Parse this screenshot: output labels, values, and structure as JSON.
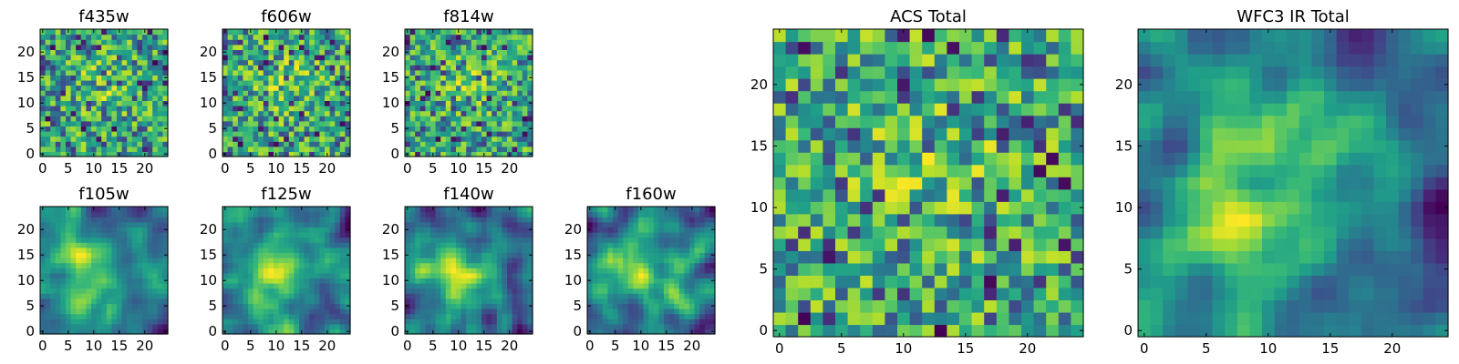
{
  "figure": {
    "background": "#ffffff"
  },
  "chart_data": [
    {
      "type": "heatmap",
      "title": "f435w",
      "rows": 25,
      "cols": 25,
      "xticks": [
        0,
        5,
        10,
        15,
        20
      ],
      "yticks": [
        0,
        5,
        10,
        15,
        20
      ],
      "xlim": [
        -0.5,
        24.5
      ],
      "ylim": [
        -0.5,
        24.5
      ],
      "colormap": "viridis",
      "pattern": "noise",
      "seed": 11
    },
    {
      "type": "heatmap",
      "title": "f606w",
      "rows": 25,
      "cols": 25,
      "xticks": [
        0,
        5,
        10,
        15,
        20
      ],
      "yticks": [
        0,
        5,
        10,
        15,
        20
      ],
      "xlim": [
        -0.5,
        24.5
      ],
      "ylim": [
        -0.5,
        24.5
      ],
      "colormap": "viridis",
      "pattern": "noise",
      "seed": 23
    },
    {
      "type": "heatmap",
      "title": "f814w",
      "rows": 25,
      "cols": 25,
      "xticks": [
        0,
        5,
        10,
        15,
        20
      ],
      "yticks": [
        0,
        5,
        10,
        15,
        20
      ],
      "xlim": [
        -0.5,
        24.5
      ],
      "ylim": [
        -0.5,
        24.5
      ],
      "colormap": "viridis",
      "pattern": "noise",
      "seed": 37
    },
    {
      "type": "heatmap",
      "title": "f105w",
      "rows": 25,
      "cols": 25,
      "xticks": [
        0,
        5,
        10,
        15,
        20
      ],
      "yticks": [
        0,
        5,
        10,
        15,
        20
      ],
      "xlim": [
        -0.5,
        24.5
      ],
      "ylim": [
        -0.5,
        24.5
      ],
      "colormap": "viridis",
      "pattern": "smooth",
      "seed": 41
    },
    {
      "type": "heatmap",
      "title": "f125w",
      "rows": 25,
      "cols": 25,
      "xticks": [
        0,
        5,
        10,
        15,
        20
      ],
      "yticks": [
        0,
        5,
        10,
        15,
        20
      ],
      "xlim": [
        -0.5,
        24.5
      ],
      "ylim": [
        -0.5,
        24.5
      ],
      "colormap": "viridis",
      "pattern": "smooth",
      "seed": 53
    },
    {
      "type": "heatmap",
      "title": "f140w",
      "rows": 25,
      "cols": 25,
      "xticks": [
        0,
        5,
        10,
        15,
        20
      ],
      "yticks": [
        0,
        5,
        10,
        15,
        20
      ],
      "xlim": [
        -0.5,
        24.5
      ],
      "ylim": [
        -0.5,
        24.5
      ],
      "colormap": "viridis",
      "pattern": "smooth",
      "seed": 67
    },
    {
      "type": "heatmap",
      "title": "f160w",
      "rows": 25,
      "cols": 25,
      "xticks": [
        0,
        5,
        10,
        15,
        20
      ],
      "yticks": [
        0,
        5,
        10,
        15,
        20
      ],
      "xlim": [
        -0.5,
        24.5
      ],
      "ylim": [
        -0.5,
        24.5
      ],
      "colormap": "viridis",
      "pattern": "smooth",
      "seed": 79
    },
    {
      "type": "heatmap",
      "title": "ACS Total",
      "rows": 25,
      "cols": 25,
      "xticks": [
        0,
        5,
        10,
        15,
        20
      ],
      "yticks": [
        0,
        5,
        10,
        15,
        20
      ],
      "xlim": [
        -0.5,
        24.5
      ],
      "ylim": [
        -0.5,
        24.5
      ],
      "colormap": "viridis",
      "pattern": "noise",
      "seed": 97
    },
    {
      "type": "heatmap",
      "title": "WFC3 IR Total",
      "rows": 25,
      "cols": 25,
      "xticks": [
        0,
        5,
        10,
        15,
        20
      ],
      "yticks": [
        0,
        5,
        10,
        15,
        20
      ],
      "xlim": [
        -0.5,
        24.5
      ],
      "ylim": [
        -0.5,
        24.5
      ],
      "colormap": "viridis",
      "pattern": "smooth",
      "seed": 113
    }
  ]
}
